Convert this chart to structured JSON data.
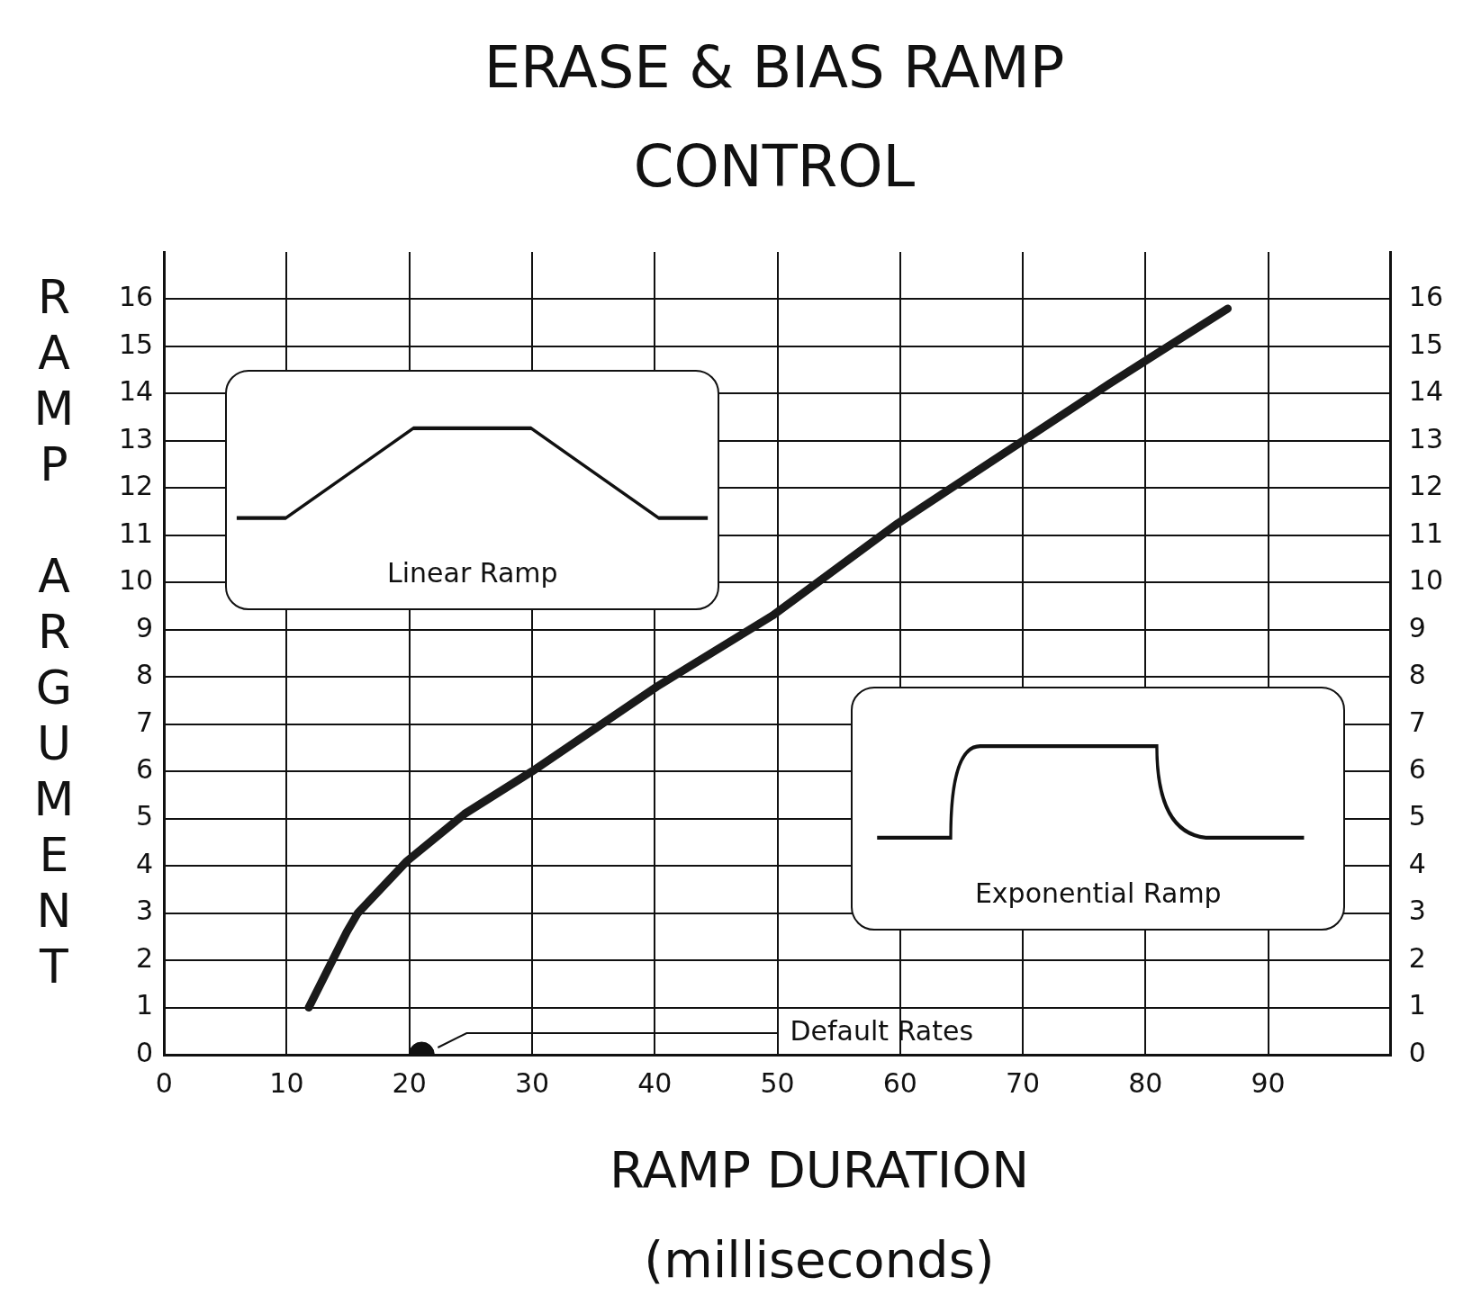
{
  "chart_data": {
    "type": "line",
    "title": "ERASE & BIAS RAMP CONTROL",
    "xlabel": "RAMP DURATION (milliseconds)",
    "ylabel": "RAMP ARGUMENT",
    "series": [
      {
        "color": "#1a1a1a",
        "x": [
          11.8,
          14.9,
          15.8,
          19.8,
          24.5,
          30,
          40.2,
          49.6,
          59.8,
          70,
          77,
          86.7
        ],
        "values": [
          1.0,
          2.6,
          3.0,
          4.1,
          5.1,
          6.0,
          7.8,
          9.3,
          11.25,
          13.0,
          14.2,
          15.8
        ]
      },
      {
        "type": "scatter",
        "name": "Default Rates",
        "marker": "circle",
        "color": "#111111",
        "x": [
          21
        ],
        "values": [
          0
        ]
      }
    ],
    "xlim": [
      0,
      100
    ],
    "xticks": [
      0,
      10,
      20,
      30,
      40,
      50,
      60,
      70,
      80,
      90
    ],
    "ylim": [
      0,
      17
    ],
    "yticks": [
      0,
      1,
      2,
      3,
      4,
      5,
      6,
      7,
      8,
      9,
      10,
      11,
      12,
      13,
      14,
      15,
      16
    ],
    "y2lim": [
      0,
      17
    ],
    "y2ticks": [
      0,
      1,
      2,
      3,
      4,
      5,
      6,
      7,
      8,
      9,
      10,
      11,
      12,
      13,
      14,
      15,
      16
    ],
    "grid": true,
    "legend": false,
    "marker": "none",
    "line_style": "solid",
    "annotations": [
      "Linear Ramp",
      "Exponential Ramp"
    ]
  }
}
